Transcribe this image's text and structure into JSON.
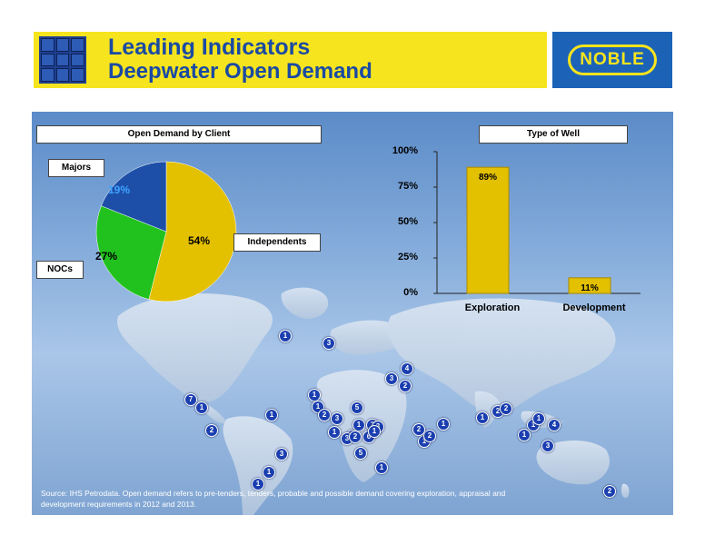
{
  "header": {
    "title_line1": "Leading Indicators",
    "title_line2": "Deepwater Open Demand",
    "brand": "NOBLE"
  },
  "colors": {
    "banner": "#f6e41e",
    "title": "#1a4aa3",
    "independents": "#e3c000",
    "nocs": "#22c21e",
    "majors": "#1d4fa8",
    "marker": "#1b3fb0"
  },
  "pie": {
    "title": "Open Demand by Client",
    "labels": {
      "majors": "Majors",
      "nocs": "NOCs",
      "independents": "Independents"
    },
    "pcts": {
      "majors": "19%",
      "nocs": "27%",
      "independents": "54%"
    }
  },
  "bars": {
    "title": "Type of Well",
    "yticks": [
      "100%",
      "75%",
      "50%",
      "25%",
      "0%"
    ],
    "categories": [
      "Exploration",
      "Development"
    ],
    "value_labels": [
      "89%",
      "11%"
    ]
  },
  "markers": [
    "1",
    "3",
    "4",
    "3",
    "2",
    "1",
    "1",
    "5",
    "2",
    "3",
    "1",
    "1",
    "3",
    "2",
    "1",
    "2",
    "3",
    "6",
    "2",
    "1",
    "1",
    "2",
    "2",
    "1",
    "5",
    "1",
    "7",
    "1",
    "1",
    "2",
    "3",
    "1",
    "1",
    "1",
    "2",
    "2",
    "1",
    "4",
    "1",
    "1",
    "3",
    "2"
  ],
  "source": "Source: IHS Petrodata. Open demand refers to pre-tenders, tenders, probable and possible demand covering exploration, appraisal and development requirements in 2012 and 2013.",
  "chart_data": [
    {
      "type": "pie",
      "title": "Open Demand by Client",
      "labels": [
        "Independents",
        "NOCs",
        "Majors"
      ],
      "values": [
        54,
        27,
        19
      ],
      "colors": [
        "#e3c000",
        "#22c21e",
        "#1d4fa8"
      ]
    },
    {
      "type": "bar",
      "title": "Type of Well",
      "categories": [
        "Exploration",
        "Development"
      ],
      "values": [
        89,
        11
      ],
      "ylim": [
        0,
        100
      ],
      "yticks": [
        "0%",
        "25%",
        "50%",
        "75%",
        "100%"
      ],
      "color": "#e3c000"
    }
  ]
}
